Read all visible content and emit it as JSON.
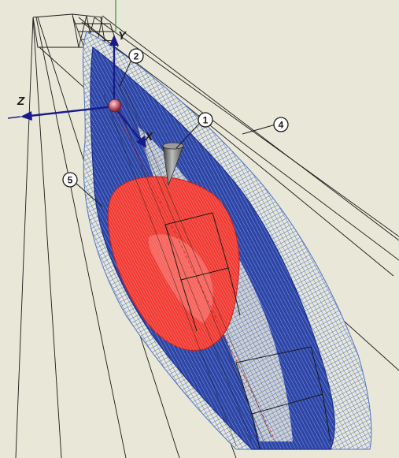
{
  "axes": {
    "y_label": "Y",
    "z_label": "Z",
    "x_label": "X"
  },
  "callouts": [
    {
      "id": "1",
      "label": "1"
    },
    {
      "id": "2",
      "label": "2"
    },
    {
      "id": "4",
      "label": "4"
    },
    {
      "id": "5",
      "label": "5"
    }
  ],
  "colors": {
    "background": "#e9e7d7",
    "outer_envelope": "#1c2f8f",
    "outer_envelope_light": "#4d74c6",
    "inner_region": "#ef3b33",
    "inner_highlight": "#ffb3ad",
    "axis": "#1a1a8c",
    "wireframe": "#1a1a1a",
    "vertical_guide": "#2d9c2d"
  },
  "icons": {
    "cone": "cone-icon",
    "origin_sphere": "sphere-icon"
  }
}
